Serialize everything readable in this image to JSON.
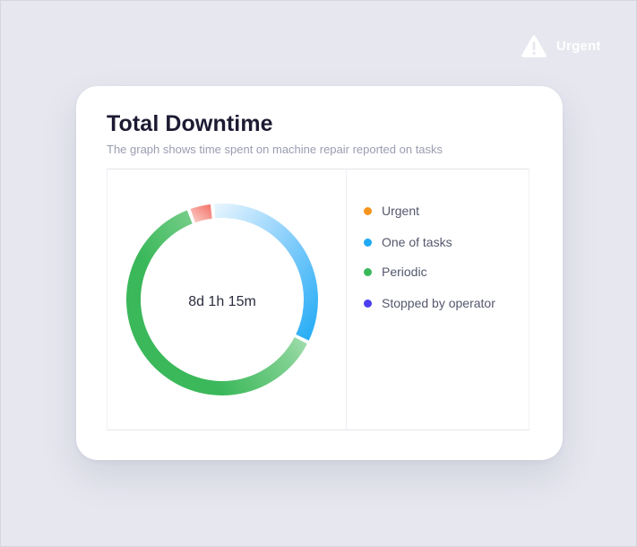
{
  "badge": {
    "label": "Urgent",
    "icon": "warning-icon"
  },
  "card": {
    "title": "Total Downtime",
    "subtitle": "The graph shows time spent on machine repair reported on tasks"
  },
  "chart_data": {
    "type": "donut",
    "center_label": "8d 1h 15m",
    "series": [
      {
        "name": "Urgent",
        "value": 4,
        "color": "#f26d62"
      },
      {
        "name": "One of tasks",
        "value": 34,
        "color": "#1eaaf5"
      },
      {
        "name": "Periodic",
        "value": 62,
        "color": "#3ab85a"
      },
      {
        "name": "Stopped by operator",
        "value": 0,
        "color": "#4b3ff0"
      }
    ]
  },
  "legend": {
    "items": [
      {
        "label": "Urgent",
        "color": "#f7941d"
      },
      {
        "label": "One of tasks",
        "color": "#1eaaf5"
      },
      {
        "label": "Periodic",
        "color": "#3ab85a"
      },
      {
        "label": "Stopped by operator",
        "color": "#4b3ff0"
      }
    ]
  }
}
